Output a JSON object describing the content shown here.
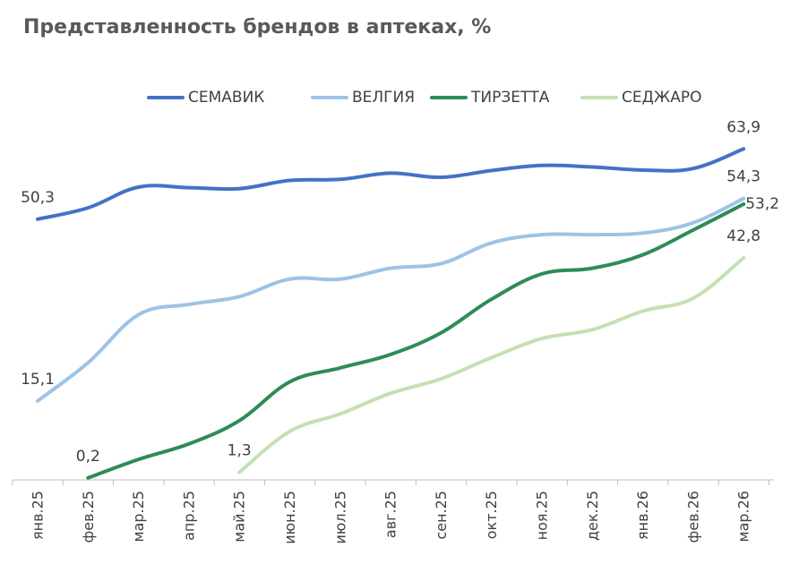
{
  "chart_data": {
    "type": "line",
    "title": "Представленность брендов в аптеках, %",
    "xlabel": "",
    "ylabel": "",
    "ylim": [
      0,
      70
    ],
    "grid": false,
    "legend_position": "top",
    "categories": [
      "янв.25",
      "фев.25",
      "мар.25",
      "апр.25",
      "май.25",
      "июн.25",
      "июл.25",
      "авг.25",
      "сен.25",
      "окт.25",
      "ноя.25",
      "дек.25",
      "янв.26",
      "фев.26",
      "мар.26"
    ],
    "series": [
      {
        "name": "СЕМАВИК",
        "color": "#4472C4",
        "values": [
          50.3,
          52.5,
          56.5,
          56.4,
          56.2,
          57.8,
          58.0,
          59.2,
          58.4,
          59.7,
          60.7,
          60.4,
          59.8,
          60.1,
          63.9
        ],
        "labels": [
          {
            "index": 0,
            "text": "50,3"
          },
          {
            "index": 14,
            "text": "63,9"
          }
        ]
      },
      {
        "name": "ВЕЛГИЯ",
        "color": "#9DC3E6",
        "values": [
          15.1,
          22.5,
          31.8,
          33.8,
          35.3,
          38.7,
          38.7,
          40.8,
          41.7,
          45.7,
          47.3,
          47.3,
          47.6,
          49.6,
          54.3
        ],
        "labels": [
          {
            "index": 0,
            "text": "15,1"
          },
          {
            "index": 14,
            "text": "54,3"
          }
        ]
      },
      {
        "name": "ТИРЗЕТТА",
        "color": "#2E8B57",
        "values": [
          null,
          0.2,
          3.8,
          6.8,
          11.3,
          18.8,
          21.5,
          24.1,
          28.3,
          34.8,
          39.7,
          40.8,
          43.4,
          48.2,
          53.2
        ],
        "labels": [
          {
            "index": 1,
            "text": "0,2"
          },
          {
            "index": 14,
            "text": "53,2"
          }
        ]
      },
      {
        "name": "СЕДЖАРО",
        "color": "#C5E0B4",
        "values": [
          null,
          null,
          null,
          null,
          1.3,
          9.2,
          12.6,
          16.6,
          19.4,
          23.5,
          27.2,
          28.9,
          32.5,
          35.0,
          42.8
        ],
        "labels": [
          {
            "index": 4,
            "text": "1,3"
          },
          {
            "index": 14,
            "text": "42,8"
          }
        ]
      }
    ]
  }
}
